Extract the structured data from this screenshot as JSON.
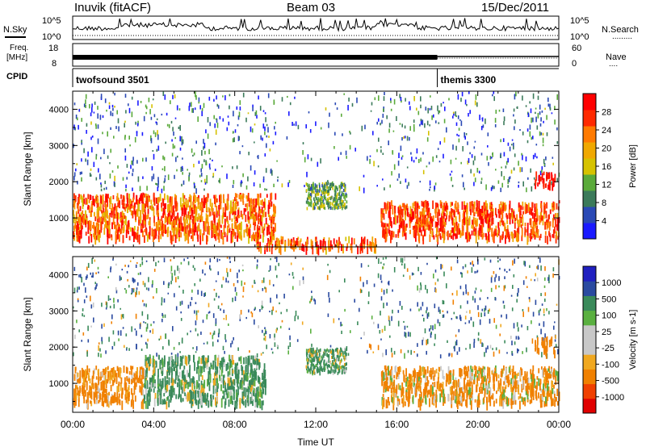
{
  "header": {
    "station": "Inuvik (fitACF)",
    "beam": "Beam 03",
    "date": "15/Dec/2011"
  },
  "top_panels": {
    "nsky_label": "N.Sky",
    "nsearch_label": "N.Search",
    "nsearch_marker": ".........",
    "noise_tick_top": "10^5",
    "noise_tick_bottom": "10^0",
    "freq_label_1": "Freq.",
    "freq_label_2": "[MHz]",
    "freq_tick_top": "18",
    "freq_tick_bottom": "8",
    "nave_label": "Nave",
    "nave_marker": "....",
    "nave_tick_top": "60",
    "nave_tick_bottom": "0",
    "cpid_label": "CPID",
    "cpid_modes": [
      {
        "name": "twofsound 3501",
        "start_hour": 0,
        "end_hour": 18
      },
      {
        "name": "themis 3300",
        "start_hour": 18,
        "end_hour": 24
      }
    ]
  },
  "colors": {
    "power_scale": [
      "#1a1aff",
      "#2a49b5",
      "#3b7a5a",
      "#5aaa3a",
      "#d6c200",
      "#f0a800",
      "#ff7a00",
      "#ff2a00",
      "#ff0000"
    ],
    "velocity_scale": [
      "#e00000",
      "#f04000",
      "#f08000",
      "#f0a820",
      "#c8c8c8",
      "#c8c8c8",
      "#5ab040",
      "#3a8a5a",
      "#2a4aa0",
      "#2020c0"
    ]
  },
  "chart_data": [
    {
      "type": "heatmap",
      "title": "Power",
      "xlabel": "Time UT",
      "ylabel": "Slant Range [km]",
      "xlim": [
        0,
        24
      ],
      "ylim": [
        200,
        4500
      ],
      "x_ticks": [
        "00:00",
        "04:00",
        "08:00",
        "12:00",
        "16:00",
        "20:00",
        "00:00"
      ],
      "y_ticks": [
        "1000",
        "2000",
        "3000",
        "4000"
      ],
      "colorbar_label": "Power [dB]",
      "colorbar_ticks": [
        "4",
        "8",
        "12",
        "16",
        "20",
        "24",
        "28"
      ],
      "colorbar_range": [
        0,
        30
      ],
      "dense_regions": [
        {
          "x": [
            0,
            10
          ],
          "y": [
            500,
            1700
          ],
          "value_range": [
            16,
            30
          ]
        },
        {
          "x": [
            15.2,
            24
          ],
          "y": [
            500,
            1500
          ],
          "value_range": [
            18,
            30
          ]
        },
        {
          "x": [
            9,
            15
          ],
          "y": [
            200,
            500
          ],
          "value_range": [
            16,
            30
          ]
        },
        {
          "x": [
            22.8,
            23.8
          ],
          "y": [
            1900,
            2300
          ],
          "value_range": [
            24,
            30
          ]
        }
      ]
    },
    {
      "type": "heatmap",
      "title": "Velocity",
      "xlabel": "Time UT",
      "ylabel": "Slant Range [km]",
      "xlim": [
        0,
        24
      ],
      "ylim": [
        200,
        4500
      ],
      "x_ticks": [
        "00:00",
        "04:00",
        "08:00",
        "12:00",
        "16:00",
        "20:00",
        "00:00"
      ],
      "y_ticks": [
        "1000",
        "2000",
        "3000",
        "4000"
      ],
      "colorbar_label": "Velocity [m s-1]",
      "colorbar_ticks": [
        "1000",
        "500",
        "100",
        "25",
        "-25",
        "-100",
        "-500",
        "-1000"
      ],
      "dense_regions": [
        {
          "x": [
            0,
            3.5
          ],
          "y": [
            500,
            1500
          ],
          "value_range": [
            -500,
            25
          ]
        },
        {
          "x": [
            3.5,
            9.5
          ],
          "y": [
            500,
            1800
          ],
          "value_range": [
            -100,
            500
          ]
        },
        {
          "x": [
            15.2,
            24
          ],
          "y": [
            500,
            1500
          ],
          "value_range": [
            -500,
            100
          ]
        },
        {
          "x": [
            22.8,
            23.8
          ],
          "y": [
            1900,
            2300
          ],
          "value_range": [
            -500,
            -100
          ]
        }
      ]
    }
  ]
}
